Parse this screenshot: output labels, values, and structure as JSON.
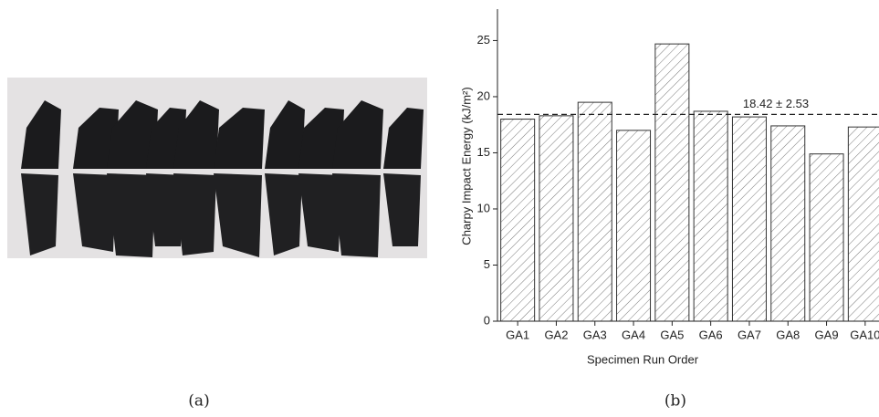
{
  "chart_data": {
    "type": "bar",
    "x_label": "Specimen Run Order",
    "y_label": "Charpy Impact Energy (kJ/m²)",
    "categories": [
      "GA1",
      "GA2",
      "GA3",
      "GA4",
      "GA5",
      "GA6",
      "GA7",
      "GA8",
      "GA9",
      "GA10"
    ],
    "values": [
      18.0,
      18.3,
      19.5,
      17.0,
      24.7,
      18.7,
      18.2,
      17.4,
      14.9,
      17.3
    ],
    "color": "#333333",
    "ylim": [
      0,
      27.8
    ],
    "yticks": [
      0,
      5,
      10,
      15,
      20,
      25
    ],
    "reference_line": {
      "value": 18.42,
      "label": "18.42 ± 2.53"
    }
  },
  "captions": [
    "(a)",
    "(b)"
  ]
}
